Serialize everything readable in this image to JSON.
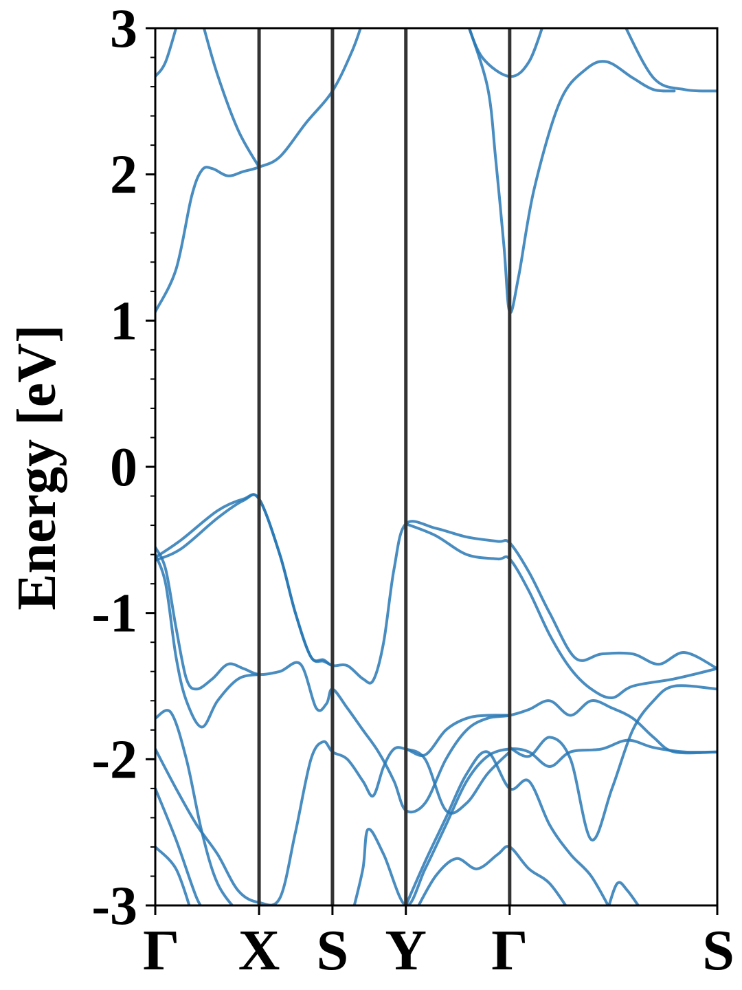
{
  "chart_data": {
    "type": "line",
    "ylabel": "Energy [eV]",
    "ylim": [
      -3,
      3
    ],
    "yticks": [
      -3,
      -2,
      -1,
      0,
      1,
      2,
      3
    ],
    "ytick_labels": [
      "-3",
      "-2",
      "-1",
      "0",
      "1",
      "2",
      "3"
    ],
    "y_minor_step": 0.2,
    "xlim": [
      0,
      5.414
    ],
    "kpoints": [
      {
        "label": "Γ",
        "x": 0
      },
      {
        "label": "X",
        "x": 1
      },
      {
        "label": "S",
        "x": 1.707
      },
      {
        "label": "Y",
        "x": 2.414
      },
      {
        "label": "Γ",
        "x": 3.414
      },
      {
        "label": "S",
        "x": 5.414
      }
    ],
    "grid": false,
    "band_color": "#2878b5",
    "divider_color": "#333333",
    "series": [
      {
        "values": [
          [
            0,
            1.06
          ],
          [
            0.2,
            1.35
          ],
          [
            0.35,
            1.85
          ],
          [
            0.45,
            2.03
          ],
          [
            0.55,
            2.04
          ],
          [
            0.7,
            1.99
          ],
          [
            0.85,
            2.02
          ],
          [
            1,
            2.05
          ],
          [
            1.2,
            2.12
          ],
          [
            1.45,
            2.35
          ],
          [
            1.707,
            2.57
          ],
          [
            1.9,
            2.85
          ],
          [
            2.0,
            3.05
          ]
        ]
      },
      {
        "values": [
          [
            0,
            2.67
          ],
          [
            0.1,
            2.77
          ],
          [
            0.22,
            3.05
          ]
        ]
      },
      {
        "values": [
          [
            0.45,
            3.05
          ],
          [
            0.6,
            2.68
          ],
          [
            0.8,
            2.3
          ],
          [
            1,
            2.05
          ]
        ]
      },
      {
        "values": [
          [
            3.0,
            3.05
          ],
          [
            3.2,
            2.6
          ],
          [
            3.28,
            2.1
          ],
          [
            3.36,
            1.5
          ],
          [
            3.414,
            1.06
          ],
          [
            3.5,
            1.3
          ],
          [
            3.65,
            1.9
          ],
          [
            3.9,
            2.5
          ],
          [
            4.15,
            2.72
          ],
          [
            4.35,
            2.77
          ],
          [
            4.6,
            2.66
          ],
          [
            4.8,
            2.58
          ],
          [
            5.0,
            2.57
          ]
        ]
      },
      {
        "values": [
          [
            3.0,
            3.05
          ],
          [
            3.15,
            2.8
          ],
          [
            3.414,
            2.67
          ],
          [
            3.6,
            2.77
          ],
          [
            3.75,
            3.05
          ]
        ]
      },
      {
        "values": [
          [
            4.5,
            3.05
          ],
          [
            4.8,
            2.66
          ],
          [
            5.1,
            2.58
          ],
          [
            5.414,
            2.57
          ]
        ]
      },
      {
        "values": [
          [
            0,
            -0.62
          ],
          [
            0.25,
            -0.5
          ],
          [
            0.6,
            -0.3
          ],
          [
            0.85,
            -0.22
          ],
          [
            1,
            -0.22
          ],
          [
            1.2,
            -0.6
          ],
          [
            1.35,
            -1.0
          ],
          [
            1.5,
            -1.3
          ],
          [
            1.62,
            -1.32
          ],
          [
            1.707,
            -1.36
          ],
          [
            1.85,
            -1.36
          ],
          [
            2.0,
            -1.45
          ],
          [
            2.1,
            -1.46
          ],
          [
            2.2,
            -1.2
          ],
          [
            2.3,
            -0.7
          ],
          [
            2.414,
            -0.39
          ],
          [
            2.7,
            -0.42
          ],
          [
            3.0,
            -0.48
          ],
          [
            3.3,
            -0.51
          ],
          [
            3.414,
            -0.52
          ],
          [
            3.6,
            -0.72
          ],
          [
            3.8,
            -1.0
          ],
          [
            4.05,
            -1.31
          ],
          [
            4.3,
            -1.28
          ],
          [
            4.6,
            -1.28
          ],
          [
            4.85,
            -1.35
          ],
          [
            5.1,
            -1.27
          ],
          [
            5.414,
            -1.38
          ]
        ]
      },
      {
        "values": [
          [
            0,
            -0.64
          ],
          [
            0.25,
            -0.56
          ],
          [
            0.6,
            -0.35
          ],
          [
            0.85,
            -0.23
          ],
          [
            1,
            -0.22
          ],
          [
            1.2,
            -0.6
          ],
          [
            1.35,
            -1.0
          ],
          [
            1.5,
            -1.3
          ],
          [
            1.62,
            -1.33
          ],
          [
            1.707,
            -1.36
          ]
        ]
      },
      {
        "values": [
          [
            2.414,
            -0.39
          ],
          [
            2.7,
            -0.47
          ],
          [
            3.0,
            -0.6
          ],
          [
            3.3,
            -0.63
          ],
          [
            3.414,
            -0.63
          ],
          [
            3.6,
            -0.85
          ],
          [
            3.8,
            -1.15
          ],
          [
            4.0,
            -1.38
          ],
          [
            4.2,
            -1.52
          ],
          [
            4.4,
            -1.58
          ],
          [
            4.6,
            -1.5
          ],
          [
            5.0,
            -1.45
          ],
          [
            5.414,
            -1.38
          ]
        ]
      },
      {
        "values": [
          [
            0,
            -0.55
          ],
          [
            0.1,
            -0.7
          ],
          [
            0.2,
            -1.1
          ],
          [
            0.3,
            -1.45
          ],
          [
            0.4,
            -1.52
          ],
          [
            0.55,
            -1.45
          ],
          [
            0.7,
            -1.35
          ],
          [
            0.85,
            -1.38
          ],
          [
            1,
            -1.42
          ],
          [
            1.2,
            -1.4
          ],
          [
            1.4,
            -1.35
          ],
          [
            1.55,
            -1.65
          ],
          [
            1.65,
            -1.62
          ],
          [
            1.707,
            -1.52
          ],
          [
            1.85,
            -1.65
          ],
          [
            2.0,
            -1.8
          ],
          [
            2.15,
            -1.95
          ],
          [
            2.3,
            -2.15
          ],
          [
            2.414,
            -2.35
          ],
          [
            2.6,
            -2.3
          ],
          [
            2.8,
            -2.0
          ],
          [
            3.0,
            -1.8
          ],
          [
            3.2,
            -1.72
          ],
          [
            3.414,
            -1.7
          ],
          [
            3.6,
            -1.66
          ],
          [
            3.8,
            -1.6
          ],
          [
            4.0,
            -1.7
          ],
          [
            4.2,
            -1.6
          ],
          [
            4.4,
            -1.65
          ],
          [
            4.6,
            -1.72
          ],
          [
            4.8,
            -1.85
          ],
          [
            5.0,
            -1.95
          ],
          [
            5.414,
            -1.95
          ]
        ]
      },
      {
        "values": [
          [
            0,
            -0.6
          ],
          [
            0.1,
            -0.8
          ],
          [
            0.2,
            -1.3
          ],
          [
            0.3,
            -1.6
          ],
          [
            0.45,
            -1.78
          ],
          [
            0.6,
            -1.6
          ],
          [
            0.8,
            -1.45
          ],
          [
            1,
            -1.42
          ]
        ]
      },
      {
        "values": [
          [
            0,
            -1.72
          ],
          [
            0.15,
            -1.68
          ],
          [
            0.3,
            -2.0
          ],
          [
            0.45,
            -2.5
          ],
          [
            0.6,
            -2.85
          ],
          [
            0.8,
            -3.05
          ]
        ]
      },
      {
        "values": [
          [
            0,
            -1.93
          ],
          [
            0.2,
            -2.2
          ],
          [
            0.4,
            -2.45
          ],
          [
            0.6,
            -2.65
          ],
          [
            0.8,
            -2.9
          ],
          [
            1,
            -2.98
          ],
          [
            1.2,
            -2.95
          ],
          [
            1.35,
            -2.5
          ],
          [
            1.5,
            -2.0
          ],
          [
            1.62,
            -1.88
          ],
          [
            1.707,
            -1.95
          ],
          [
            1.85,
            -2.0
          ],
          [
            2.0,
            -2.15
          ],
          [
            2.1,
            -2.25
          ],
          [
            2.2,
            -2.05
          ],
          [
            2.3,
            -1.93
          ],
          [
            2.414,
            -1.93
          ],
          [
            2.6,
            -1.97
          ],
          [
            2.8,
            -1.8
          ],
          [
            3.0,
            -1.72
          ],
          [
            3.2,
            -1.7
          ],
          [
            3.414,
            -1.7
          ]
        ]
      },
      {
        "values": [
          [
            0,
            -2.2
          ],
          [
            0.2,
            -2.55
          ],
          [
            0.4,
            -2.95
          ],
          [
            0.5,
            -3.05
          ]
        ]
      },
      {
        "values": [
          [
            0,
            -2.6
          ],
          [
            0.2,
            -2.75
          ],
          [
            0.35,
            -3.05
          ]
        ]
      },
      {
        "values": [
          [
            2.414,
            -1.93
          ],
          [
            2.6,
            -2.0
          ],
          [
            2.8,
            -2.35
          ],
          [
            3.0,
            -2.3
          ],
          [
            3.2,
            -2.1
          ],
          [
            3.414,
            -1.95
          ]
        ]
      },
      {
        "values": [
          [
            1.9,
            -3.05
          ],
          [
            2.0,
            -2.75
          ],
          [
            2.05,
            -2.48
          ],
          [
            2.2,
            -2.65
          ],
          [
            2.414,
            -3.0
          ],
          [
            2.6,
            -2.75
          ],
          [
            2.8,
            -2.45
          ],
          [
            3.0,
            -2.15
          ],
          [
            3.2,
            -1.98
          ],
          [
            3.414,
            -1.93
          ],
          [
            3.6,
            -1.95
          ],
          [
            3.8,
            -2.05
          ],
          [
            4.0,
            -1.95
          ],
          [
            4.3,
            -1.93
          ],
          [
            4.55,
            -1.87
          ],
          [
            4.8,
            -1.92
          ],
          [
            5.1,
            -1.95
          ],
          [
            5.414,
            -1.95
          ]
        ]
      },
      {
        "values": [
          [
            2.414,
            -3.0
          ],
          [
            2.6,
            -2.7
          ],
          [
            2.8,
            -2.4
          ],
          [
            3.0,
            -2.1
          ],
          [
            3.2,
            -1.95
          ],
          [
            3.414,
            -2.2
          ],
          [
            3.6,
            -2.15
          ],
          [
            3.8,
            -2.45
          ],
          [
            4.0,
            -2.65
          ],
          [
            4.2,
            -2.8
          ],
          [
            4.4,
            -3.05
          ]
        ]
      },
      {
        "values": [
          [
            2.5,
            -3.05
          ],
          [
            2.7,
            -2.8
          ],
          [
            2.9,
            -2.68
          ],
          [
            3.1,
            -2.75
          ],
          [
            3.3,
            -2.65
          ],
          [
            3.414,
            -2.6
          ],
          [
            3.6,
            -2.75
          ],
          [
            3.8,
            -2.85
          ],
          [
            4.0,
            -3.05
          ]
        ]
      },
      {
        "values": [
          [
            3.414,
            -1.92
          ],
          [
            3.6,
            -1.98
          ],
          [
            3.8,
            -1.85
          ],
          [
            4.0,
            -2.0
          ],
          [
            4.2,
            -2.55
          ],
          [
            4.4,
            -2.2
          ],
          [
            4.6,
            -1.8
          ],
          [
            4.8,
            -1.6
          ],
          [
            5.0,
            -1.5
          ],
          [
            5.414,
            -1.52
          ]
        ]
      },
      {
        "values": [
          [
            4.35,
            -3.05
          ],
          [
            4.45,
            -2.85
          ],
          [
            4.55,
            -2.9
          ],
          [
            4.7,
            -3.05
          ]
        ]
      }
    ]
  }
}
